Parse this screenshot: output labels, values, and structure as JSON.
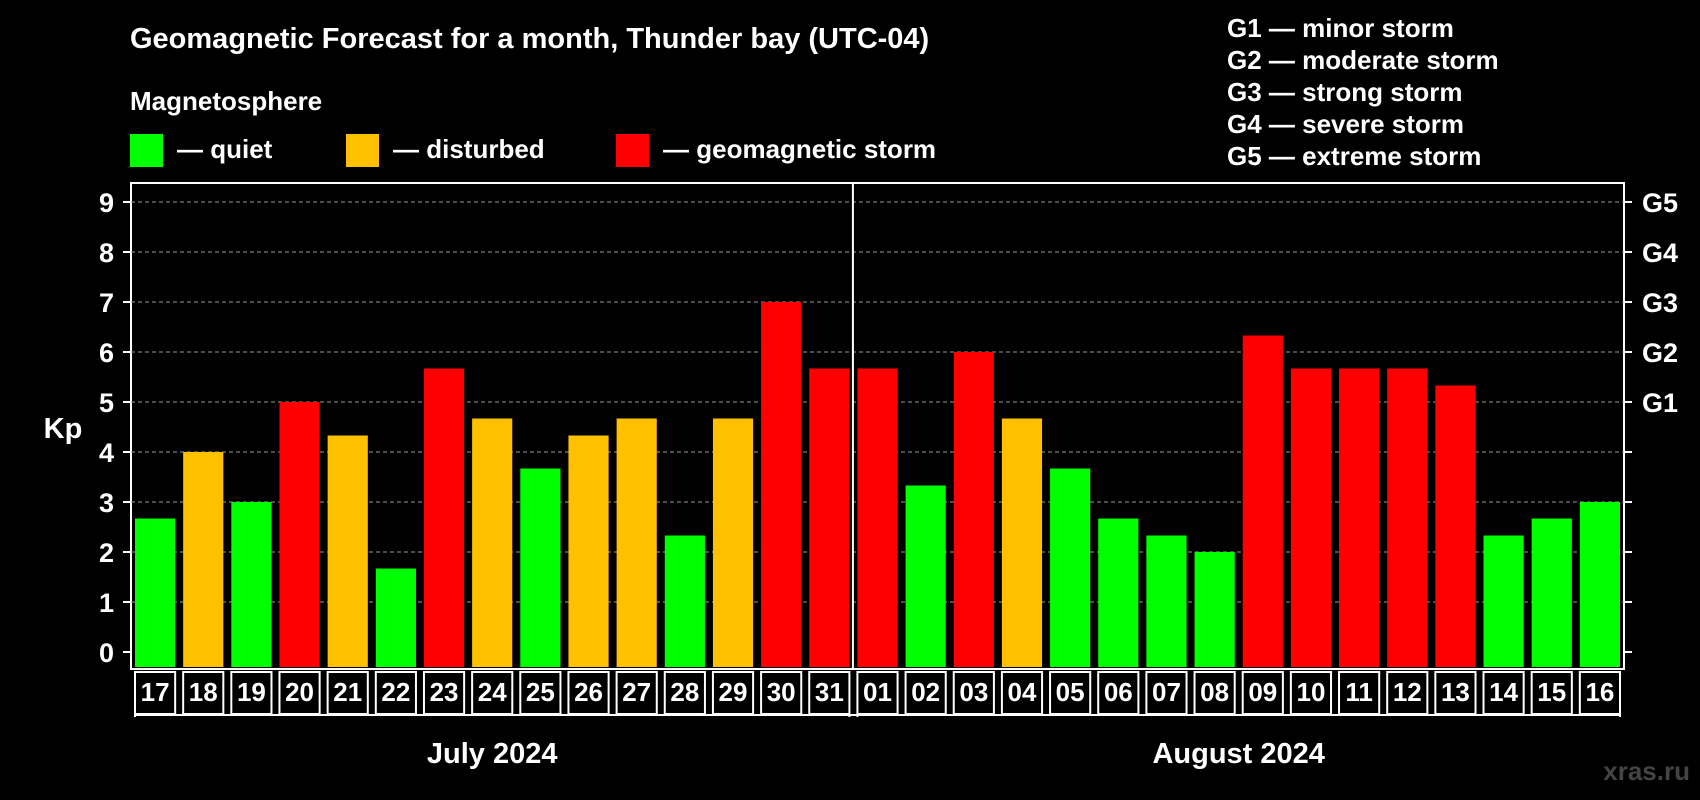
{
  "chart_data": {
    "type": "bar",
    "title": "Geomagnetic Forecast for a month, Thunder bay (UTC-04)",
    "legend": {
      "heading": "Magnetosphere",
      "items": [
        {
          "key": "quiet",
          "label": "— quiet",
          "color": "#00ff00"
        },
        {
          "key": "disturbed",
          "label": "— disturbed",
          "color": "#ffc000"
        },
        {
          "key": "storm",
          "label": "— geomagnetic storm",
          "color": "#ff0000"
        }
      ]
    },
    "storm_scale": [
      "G1 — minor storm",
      "G2 — moderate storm",
      "G3 — strong storm",
      "G4 — severe storm",
      "G5 — extreme storm"
    ],
    "ylabel": "Kp",
    "ylim": [
      0,
      9
    ],
    "yticks": [
      "0",
      "1",
      "2",
      "3",
      "4",
      "5",
      "6",
      "7",
      "8",
      "9"
    ],
    "right_ticks": [
      {
        "value": 5,
        "label": "G1"
      },
      {
        "value": 6,
        "label": "G2"
      },
      {
        "value": 7,
        "label": "G3"
      },
      {
        "value": 8,
        "label": "G4"
      },
      {
        "value": 9,
        "label": "G5"
      }
    ],
    "categories": [
      "17",
      "18",
      "19",
      "20",
      "21",
      "22",
      "23",
      "24",
      "25",
      "26",
      "27",
      "28",
      "29",
      "30",
      "31",
      "01",
      "02",
      "03",
      "04",
      "05",
      "06",
      "07",
      "08",
      "09",
      "10",
      "11",
      "12",
      "13",
      "14",
      "15",
      "16"
    ],
    "values": [
      2.67,
      4,
      3,
      5,
      4.33,
      1.67,
      5.67,
      4.67,
      3.67,
      4.33,
      4.67,
      2.33,
      4.67,
      7,
      5.67,
      5.67,
      3.33,
      6,
      4.67,
      3.67,
      2.67,
      2.33,
      2,
      6.33,
      5.67,
      5.67,
      5.67,
      5.33,
      2.33,
      2.67,
      3
    ],
    "levels": [
      "quiet",
      "disturbed",
      "quiet",
      "storm",
      "disturbed",
      "quiet",
      "storm",
      "disturbed",
      "quiet",
      "disturbed",
      "disturbed",
      "quiet",
      "disturbed",
      "storm",
      "storm",
      "storm",
      "quiet",
      "storm",
      "disturbed",
      "quiet",
      "quiet",
      "quiet",
      "quiet",
      "storm",
      "storm",
      "storm",
      "storm",
      "storm",
      "quiet",
      "quiet",
      "quiet"
    ],
    "months": [
      {
        "label": "July 2024",
        "start_index": 0,
        "count": 15
      },
      {
        "label": "August 2024",
        "start_index": 15,
        "count": 16
      }
    ],
    "grid": true
  },
  "watermark": "xras.ru"
}
